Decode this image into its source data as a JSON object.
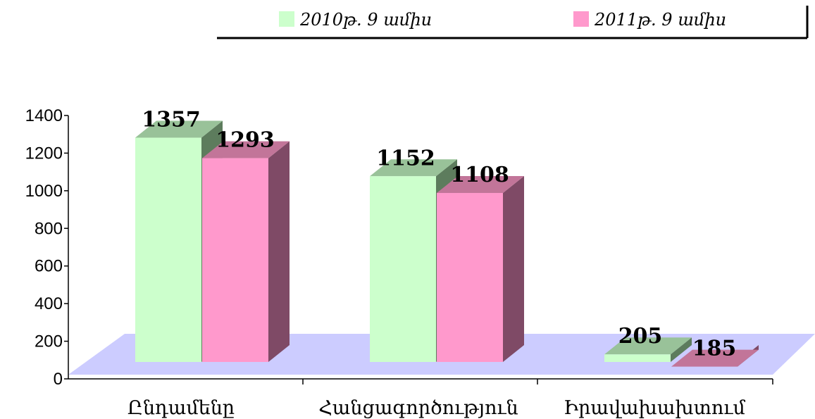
{
  "chart_data": {
    "type": "bar",
    "categories": [
      "Ընդամենը",
      "Հանցագործություն",
      "Իրավախախտում"
    ],
    "series": [
      {
        "name": "2010թ. 9 ամիս",
        "values": [
          1357,
          1152,
          205
        ]
      },
      {
        "name": "2011թ. 9 ամիս",
        "values": [
          1293,
          1108,
          185
        ]
      }
    ],
    "title": "",
    "xlabel": "",
    "ylabel": "",
    "ylim": [
      0,
      1400
    ],
    "yticks": [
      0,
      200,
      400,
      600,
      800,
      1000,
      1200,
      1400
    ],
    "legend_position": "top-right",
    "grid": false,
    "style": "3d-column",
    "colors": {
      "series_front": [
        "#ccffcc",
        "#ff99cc"
      ],
      "series_top": [
        "#99c299",
        "#c27599"
      ],
      "series_side": [
        "#5d7c5d",
        "#7f4a66"
      ],
      "floor": "#ccccff",
      "axis": "#000000"
    }
  }
}
